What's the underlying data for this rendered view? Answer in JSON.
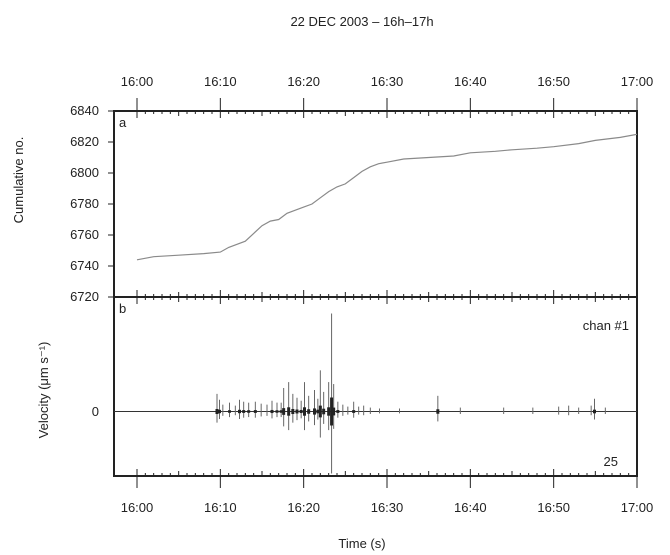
{
  "chart_data": [
    {
      "panel": "a",
      "type": "line",
      "title": "22 DEC 2003 – 16h–17h",
      "ylabel": "Cumulative no.",
      "xlim": [
        "16:00",
        "17:00"
      ],
      "ylim": [
        6720,
        6840
      ],
      "x_ticks": [
        "16:00",
        "16:10",
        "16:20",
        "16:30",
        "16:40",
        "16:50",
        "17:00"
      ],
      "y_ticks": [
        6720,
        6740,
        6760,
        6780,
        6800,
        6820,
        6840
      ],
      "series": [
        {
          "x": [
            "16:00",
            "16:02",
            "16:05",
            "16:08",
            "16:10",
            "16:11",
            "16:13",
            "16:14",
            "16:15",
            "16:16",
            "16:17",
            "16:18",
            "16:19",
            "16:20",
            "16:21",
            "16:22",
            "16:23",
            "16:24",
            "16:25",
            "16:26",
            "16:27",
            "16:28",
            "16:29",
            "16:30",
            "16:32",
            "16:35",
            "16:38",
            "16:40",
            "16:43",
            "16:45",
            "16:48",
            "16:50",
            "16:53",
            "16:55",
            "16:58",
            "17:00"
          ],
          "y": [
            6744,
            6746,
            6747,
            6748,
            6749,
            6752,
            6756,
            6761,
            6766,
            6769,
            6770,
            6774,
            6776,
            6778,
            6780,
            6784,
            6788,
            6791,
            6793,
            6797,
            6801,
            6804,
            6806,
            6807,
            6809,
            6810,
            6811,
            6813,
            6814,
            6815,
            6816,
            6817,
            6819,
            6821,
            6823,
            6825
          ]
        }
      ]
    },
    {
      "panel": "b",
      "type": "line",
      "xlabel": "Time (s)",
      "ylabel": "Velocity (μm s⁻¹)",
      "xlim": [
        "16:00",
        "17:00"
      ],
      "ylim": [
        -1,
        1
      ],
      "y_ticks": [
        0
      ],
      "x_ticks": [
        "16:00",
        "16:10",
        "16:20",
        "16:30",
        "16:40",
        "16:50",
        "17:00"
      ],
      "annotations": [
        "chan #1",
        "25"
      ],
      "spikes": [
        {
          "t": 9.6,
          "a": 0.18
        },
        {
          "t": 9.9,
          "a": 0.12
        },
        {
          "t": 10.3,
          "a": 0.07
        },
        {
          "t": 11.1,
          "a": 0.09
        },
        {
          "t": 11.8,
          "a": 0.06
        },
        {
          "t": 12.3,
          "a": 0.12
        },
        {
          "t": 12.8,
          "a": 0.1
        },
        {
          "t": 13.4,
          "a": 0.09
        },
        {
          "t": 14.2,
          "a": 0.1
        },
        {
          "t": 14.9,
          "a": 0.08
        },
        {
          "t": 15.6,
          "a": 0.07
        },
        {
          "t": 16.2,
          "a": 0.11
        },
        {
          "t": 16.8,
          "a": 0.09
        },
        {
          "t": 17.3,
          "a": 0.09
        },
        {
          "t": 17.6,
          "a": 0.24
        },
        {
          "t": 18.2,
          "a": 0.3
        },
        {
          "t": 18.7,
          "a": 0.18
        },
        {
          "t": 19.2,
          "a": 0.14
        },
        {
          "t": 19.7,
          "a": 0.11
        },
        {
          "t": 20.1,
          "a": 0.3
        },
        {
          "t": 20.6,
          "a": 0.16
        },
        {
          "t": 21.3,
          "a": 0.22
        },
        {
          "t": 21.7,
          "a": 0.13
        },
        {
          "t": 22.0,
          "a": 0.42
        },
        {
          "t": 22.4,
          "a": 0.2
        },
        {
          "t": 23.0,
          "a": 0.3
        },
        {
          "t": 23.35,
          "a": 1.0
        },
        {
          "t": 23.6,
          "a": 0.28
        },
        {
          "t": 24.1,
          "a": 0.1
        },
        {
          "t": 24.7,
          "a": 0.07
        },
        {
          "t": 25.3,
          "a": 0.05
        },
        {
          "t": 26.0,
          "a": 0.1
        },
        {
          "t": 26.6,
          "a": 0.05
        },
        {
          "t": 27.2,
          "a": 0.06
        },
        {
          "t": 28.0,
          "a": 0.04
        },
        {
          "t": 29.1,
          "a": 0.03
        },
        {
          "t": 31.5,
          "a": 0.03
        },
        {
          "t": 36.1,
          "a": 0.16
        },
        {
          "t": 38.8,
          "a": 0.04
        },
        {
          "t": 44.0,
          "a": 0.04
        },
        {
          "t": 47.5,
          "a": 0.04
        },
        {
          "t": 50.6,
          "a": 0.05
        },
        {
          "t": 51.8,
          "a": 0.06
        },
        {
          "t": 53.0,
          "a": 0.04
        },
        {
          "t": 54.5,
          "a": 0.06
        },
        {
          "t": 54.9,
          "a": 0.13
        },
        {
          "t": 56.2,
          "a": 0.04
        }
      ]
    }
  ]
}
